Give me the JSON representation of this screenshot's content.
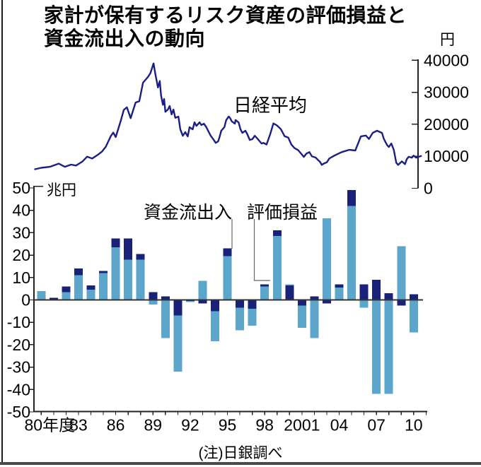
{
  "title": {
    "line1": "家計が保有するリスク資産の評価損益と",
    "line2": "資金流出入の動向"
  },
  "note": "(注)日銀調べ",
  "colors": {
    "valuation_light_blue": "#5CA6CB",
    "flow_dark_navy": "#1A2178",
    "nikkei_line": "#1B1E87",
    "axis": "#222222",
    "baseline": "#333333",
    "pointer_line": "#666666",
    "left_border": "#1a1a1a",
    "bottom_border": "#4a4a4a"
  },
  "chart_data": [
    {
      "type": "line",
      "title": "日経平均",
      "unit": "円",
      "legend_position": "inside-top",
      "grid": false,
      "y_axis_side": "right",
      "y_ticks": [
        0,
        10000,
        20000,
        30000,
        40000
      ],
      "ylim": [
        0,
        40000
      ],
      "points": [
        [
          1979.5,
          5950
        ],
        [
          1980.0,
          6400
        ],
        [
          1980.7,
          6700
        ],
        [
          1981.4,
          7700
        ],
        [
          1981.9,
          6700
        ],
        [
          1982.4,
          7400
        ],
        [
          1982.8,
          7100
        ],
        [
          1983.3,
          8300
        ],
        [
          1983.7,
          9900
        ],
        [
          1984.1,
          9300
        ],
        [
          1984.5,
          10300
        ],
        [
          1984.9,
          11500
        ],
        [
          1985.2,
          13000
        ],
        [
          1985.6,
          16300
        ],
        [
          1985.8,
          17400
        ],
        [
          1986.0,
          16000
        ],
        [
          1986.4,
          21000
        ],
        [
          1986.65,
          24500
        ],
        [
          1986.9,
          25300
        ],
        [
          1987.2,
          21900
        ],
        [
          1987.6,
          26800
        ],
        [
          1987.9,
          27200
        ],
        [
          1988.2,
          33000
        ],
        [
          1988.6,
          34800
        ],
        [
          1988.8,
          36000
        ],
        [
          1989.05,
          39000
        ],
        [
          1989.2,
          35500
        ],
        [
          1989.4,
          31500
        ],
        [
          1989.55,
          33500
        ],
        [
          1989.65,
          29000
        ],
        [
          1989.8,
          26100
        ],
        [
          1989.9,
          27900
        ],
        [
          1990.0,
          23900
        ],
        [
          1990.2,
          24600
        ],
        [
          1990.35,
          25700
        ],
        [
          1990.5,
          23100
        ],
        [
          1990.65,
          24600
        ],
        [
          1990.8,
          22000
        ],
        [
          1991.05,
          22400
        ],
        [
          1991.2,
          18400
        ],
        [
          1991.4,
          16400
        ],
        [
          1991.6,
          17550
        ],
        [
          1991.8,
          16200
        ],
        [
          1991.95,
          19100
        ],
        [
          1992.2,
          18400
        ],
        [
          1992.35,
          20600
        ],
        [
          1992.5,
          19500
        ],
        [
          1992.75,
          20600
        ],
        [
          1992.9,
          19750
        ],
        [
          1993.1,
          20200
        ],
        [
          1993.3,
          19100
        ],
        [
          1993.5,
          17550
        ],
        [
          1993.65,
          16400
        ],
        [
          1993.9,
          15100
        ],
        [
          1994.05,
          14200
        ],
        [
          1994.25,
          14650
        ],
        [
          1994.35,
          15800
        ],
        [
          1994.5,
          18000
        ],
        [
          1994.75,
          19100
        ],
        [
          1994.9,
          21300
        ],
        [
          1995.1,
          22400
        ],
        [
          1995.2,
          22000
        ],
        [
          1995.35,
          20900
        ],
        [
          1995.6,
          20200
        ],
        [
          1995.65,
          21300
        ],
        [
          1995.9,
          20600
        ],
        [
          1996.05,
          18400
        ],
        [
          1996.2,
          17300
        ],
        [
          1996.45,
          18000
        ],
        [
          1996.6,
          16900
        ],
        [
          1996.8,
          15100
        ],
        [
          1997.0,
          15350
        ],
        [
          1997.2,
          16400
        ],
        [
          1997.35,
          15800
        ],
        [
          1997.6,
          14650
        ],
        [
          1997.75,
          14000
        ],
        [
          1997.9,
          14200
        ],
        [
          1998.15,
          13660
        ],
        [
          1998.45,
          17000
        ],
        [
          1998.7,
          20260
        ],
        [
          1999.0,
          19600
        ],
        [
          1999.3,
          18500
        ],
        [
          1999.6,
          16300
        ],
        [
          1999.9,
          15850
        ],
        [
          2000.15,
          13660
        ],
        [
          2000.4,
          12550
        ],
        [
          2000.7,
          11890
        ],
        [
          2001.0,
          10500
        ],
        [
          2001.15,
          9800
        ],
        [
          2001.35,
          10800
        ],
        [
          2001.6,
          11300
        ],
        [
          2001.8,
          10000
        ],
        [
          2002.1,
          9600
        ],
        [
          2002.3,
          8800
        ],
        [
          2002.45,
          8300
        ],
        [
          2002.6,
          7300
        ],
        [
          2002.8,
          7800
        ],
        [
          2003.0,
          8100
        ],
        [
          2003.2,
          9300
        ],
        [
          2003.6,
          10200
        ],
        [
          2004.2,
          11300
        ],
        [
          2004.8,
          12000
        ],
        [
          2005.3,
          11800
        ],
        [
          2005.75,
          16200
        ],
        [
          2006.15,
          16500
        ],
        [
          2006.4,
          15400
        ],
        [
          2006.7,
          17300
        ],
        [
          2007.05,
          18000
        ],
        [
          2007.45,
          17300
        ],
        [
          2007.6,
          15400
        ],
        [
          2007.85,
          13550
        ],
        [
          2008.0,
          12900
        ],
        [
          2008.2,
          14000
        ],
        [
          2008.4,
          12000
        ],
        [
          2008.6,
          8000
        ],
        [
          2008.75,
          7300
        ],
        [
          2009.05,
          8400
        ],
        [
          2009.3,
          7550
        ],
        [
          2009.45,
          9100
        ],
        [
          2009.6,
          9850
        ],
        [
          2009.85,
          9550
        ],
        [
          2010.0,
          10200
        ],
        [
          2010.2,
          9550
        ],
        [
          2010.4,
          9850
        ],
        [
          2010.6,
          10070
        ]
      ]
    },
    {
      "type": "bar",
      "subtype": "stacked-diverging",
      "unit": "兆円",
      "y_axis_side": "left",
      "y_ticks": [
        50,
        40,
        30,
        20,
        10,
        0,
        -10,
        -20,
        -30,
        -40,
        -50
      ],
      "ylim": [
        -50,
        50
      ],
      "series": [
        {
          "key": "valuation",
          "name": "評価損益",
          "color_ref": "valuation_light_blue"
        },
        {
          "key": "flow",
          "name": "資金流出入",
          "color_ref": "flow_dark_navy"
        }
      ],
      "x_tick_labels": [
        {
          "year": 1980,
          "label": "80年度",
          "dx": 12
        },
        {
          "year": 1983,
          "label": "83"
        },
        {
          "year": 1986,
          "label": "86"
        },
        {
          "year": 1989,
          "label": "89"
        },
        {
          "year": 1992,
          "label": "92"
        },
        {
          "year": 1995,
          "label": "95"
        },
        {
          "year": 1998,
          "label": "98"
        },
        {
          "year": 2001,
          "label": "2001"
        },
        {
          "year": 2004,
          "label": "04"
        },
        {
          "year": 2007,
          "label": "07"
        },
        {
          "year": 2010,
          "label": "10"
        }
      ],
      "minor_tick_years": {
        "from": 1980,
        "to": 2011
      },
      "years": [
        {
          "year": 1980,
          "pos": [
            [
              "valuation",
              4
            ]
          ],
          "neg": []
        },
        {
          "year": 1981,
          "pos": [
            [
              "flow",
              1
            ]
          ],
          "neg": []
        },
        {
          "year": 1982,
          "pos": [
            [
              "valuation",
              3.5
            ],
            [
              "flow",
              2.5
            ]
          ],
          "neg": []
        },
        {
          "year": 1983,
          "pos": [
            [
              "valuation",
              11
            ],
            [
              "flow",
              3
            ]
          ],
          "neg": []
        },
        {
          "year": 1984,
          "pos": [
            [
              "valuation",
              4.5
            ],
            [
              "flow",
              2
            ]
          ],
          "neg": []
        },
        {
          "year": 1985,
          "pos": [
            [
              "valuation",
              12
            ],
            [
              "flow",
              1
            ]
          ],
          "neg": []
        },
        {
          "year": 1986,
          "pos": [
            [
              "valuation",
              23.5
            ],
            [
              "flow",
              4
            ]
          ],
          "neg": []
        },
        {
          "year": 1987,
          "pos": [
            [
              "valuation",
              18
            ],
            [
              "flow",
              9.5
            ]
          ],
          "neg": []
        },
        {
          "year": 1988,
          "pos": [
            [
              "valuation",
              18
            ],
            [
              "flow",
              2.5
            ]
          ],
          "neg": []
        },
        {
          "year": 1989,
          "pos": [
            [
              "flow",
              3.5
            ]
          ],
          "neg": [
            [
              "valuation",
              2
            ]
          ]
        },
        {
          "year": 1990,
          "pos": [
            [
              "flow",
              1.5
            ]
          ],
          "neg": [
            [
              "valuation",
              17
            ]
          ]
        },
        {
          "year": 1991,
          "pos": [],
          "neg": [
            [
              "flow",
              7
            ],
            [
              "valuation",
              25
            ]
          ]
        },
        {
          "year": 1992,
          "pos": [],
          "neg": [
            [
              "flow",
              0.5
            ],
            [
              "valuation",
              0.5
            ]
          ]
        },
        {
          "year": 1993,
          "pos": [
            [
              "valuation",
              8.5
            ]
          ],
          "neg": [
            [
              "flow",
              1.5
            ]
          ]
        },
        {
          "year": 1994,
          "pos": [],
          "neg": [
            [
              "flow",
              5
            ],
            [
              "valuation",
              13.5
            ]
          ]
        },
        {
          "year": 1995,
          "pos": [
            [
              "valuation",
              19.5
            ],
            [
              "flow",
              3.5
            ]
          ],
          "neg": []
        },
        {
          "year": 1996,
          "pos": [],
          "neg": [
            [
              "flow",
              3.5
            ],
            [
              "valuation",
              10
            ]
          ]
        },
        {
          "year": 1997,
          "pos": [],
          "neg": [
            [
              "flow",
              4
            ],
            [
              "valuation",
              7.5
            ]
          ]
        },
        {
          "year": 1998,
          "pos": [
            [
              "valuation",
              6
            ],
            [
              "flow",
              1
            ]
          ],
          "neg": []
        },
        {
          "year": 1999,
          "pos": [
            [
              "valuation",
              28.5
            ],
            [
              "flow",
              2.5
            ]
          ],
          "neg": []
        },
        {
          "year": 2000,
          "pos": [
            [
              "flow",
              6.5
            ],
            [
              "valuation",
              0.5
            ]
          ],
          "neg": []
        },
        {
          "year": 2001,
          "pos": [],
          "neg": [
            [
              "flow",
              2.5
            ],
            [
              "valuation",
              10
            ]
          ]
        },
        {
          "year": 2002,
          "pos": [
            [
              "flow",
              1.5
            ]
          ],
          "neg": [
            [
              "valuation",
              17
            ]
          ]
        },
        {
          "year": 2003,
          "pos": [
            [
              "valuation",
              36.5
            ]
          ],
          "neg": [
            [
              "flow",
              1.5
            ]
          ]
        },
        {
          "year": 2004,
          "pos": [
            [
              "valuation",
              5.5
            ],
            [
              "flow",
              1.5
            ]
          ],
          "neg": []
        },
        {
          "year": 2005,
          "pos": [
            [
              "valuation",
              42
            ],
            [
              "flow",
              7
            ]
          ],
          "neg": []
        },
        {
          "year": 2006,
          "pos": [
            [
              "flow",
              7
            ]
          ],
          "neg": [
            [
              "valuation",
              3.5
            ]
          ]
        },
        {
          "year": 2007,
          "pos": [
            [
              "flow",
              9
            ]
          ],
          "neg": [
            [
              "valuation",
              42
            ]
          ]
        },
        {
          "year": 2008,
          "pos": [
            [
              "flow",
              3
            ]
          ],
          "neg": [
            [
              "valuation",
              42
            ]
          ]
        },
        {
          "year": 2009,
          "pos": [
            [
              "valuation",
              24
            ]
          ],
          "neg": [
            [
              "flow",
              2.5
            ]
          ]
        },
        {
          "year": 2010,
          "pos": [
            [
              "flow",
              2.5
            ]
          ],
          "neg": [
            [
              "valuation",
              14.5
            ]
          ]
        }
      ]
    }
  ],
  "labels": {
    "yen_unit": "円",
    "trillion_unit": "兆円",
    "nikkei": "日経平均",
    "legend_flow": "資金流出入",
    "legend_valuation": "評価損益"
  }
}
